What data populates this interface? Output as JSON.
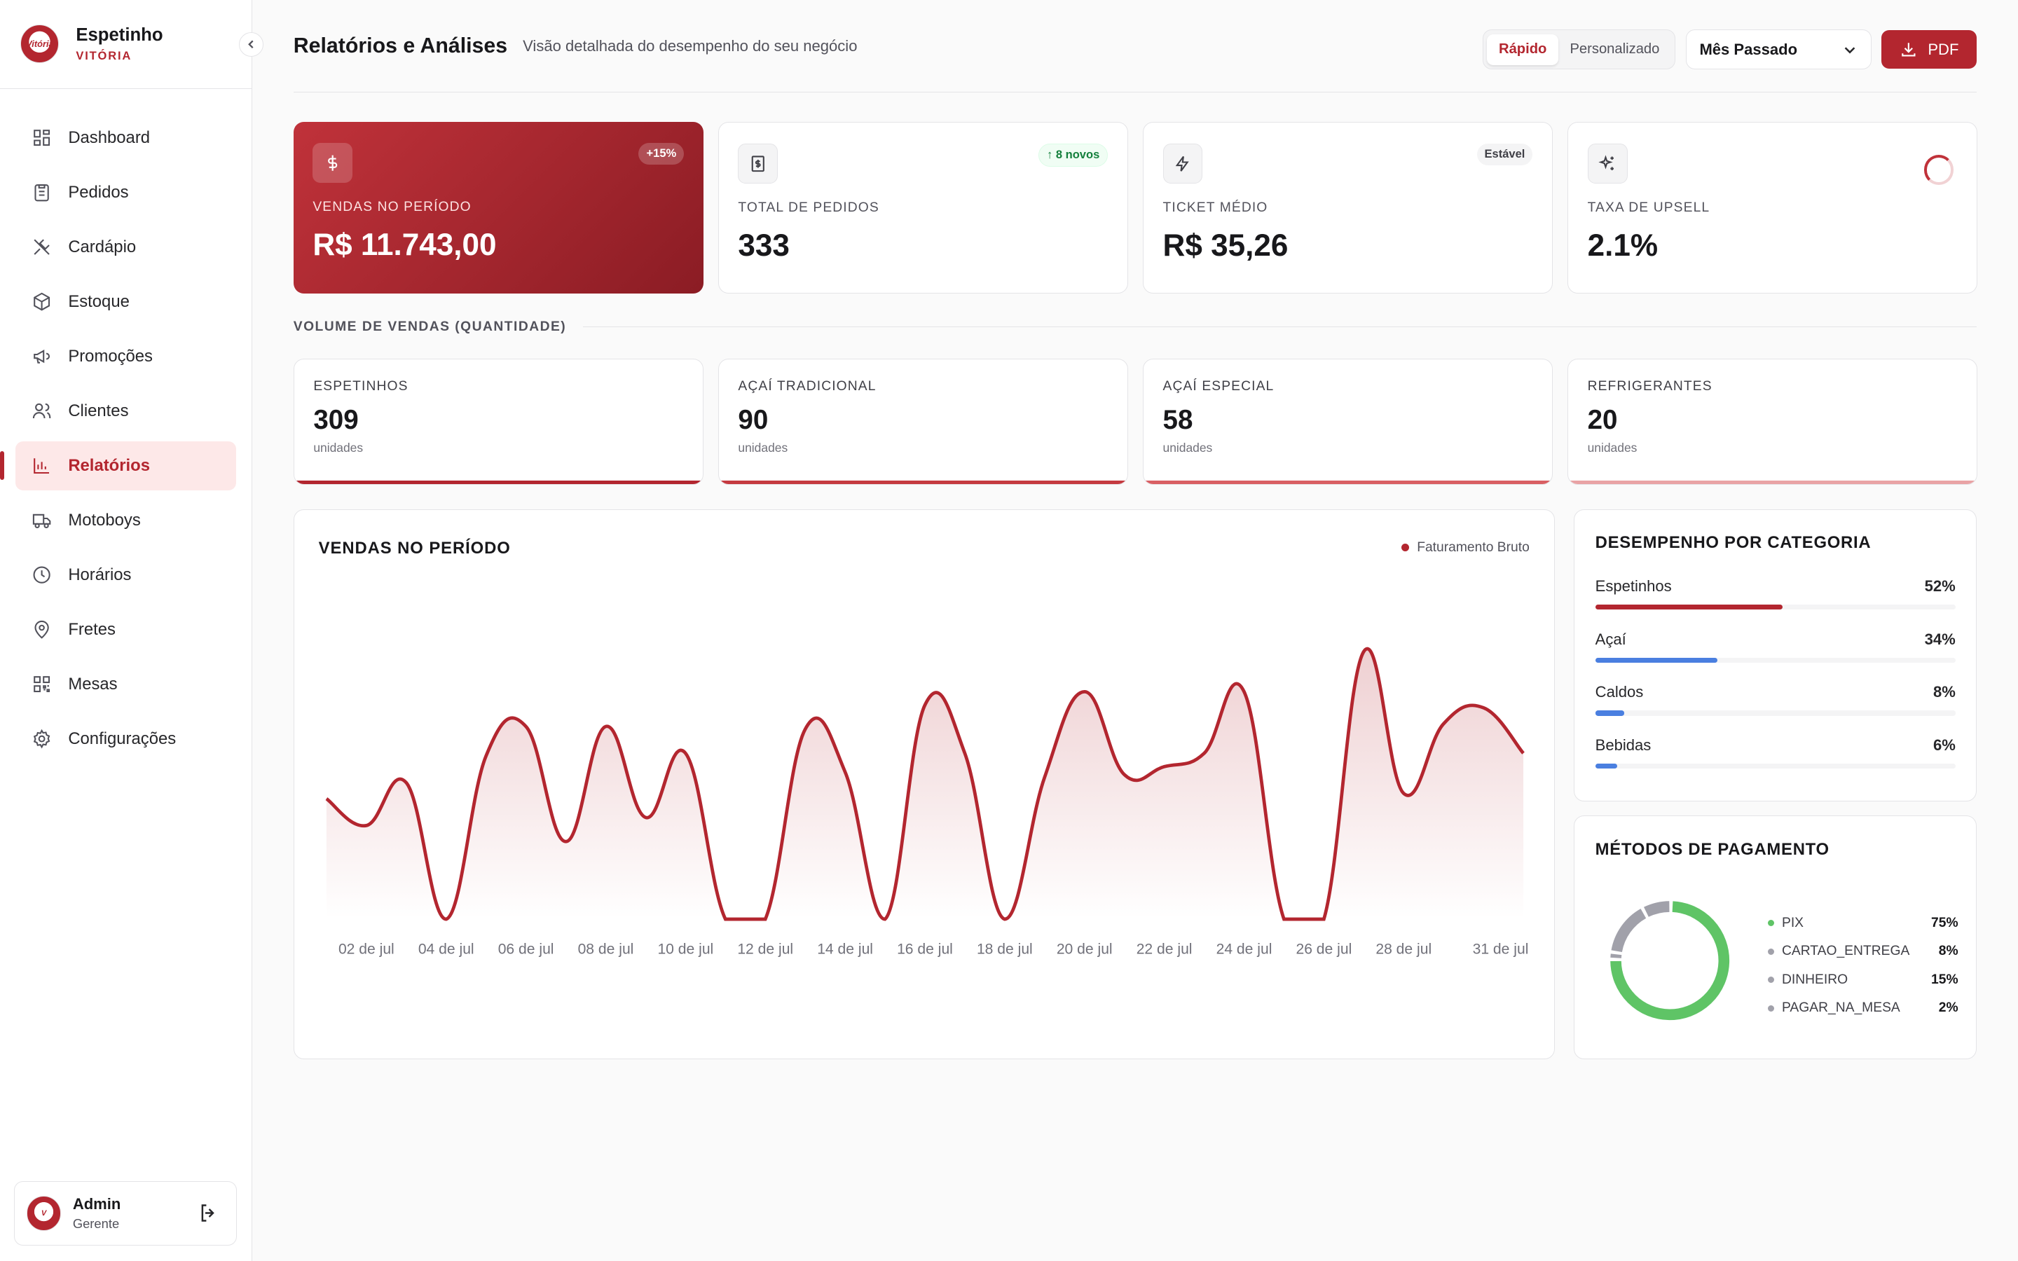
{
  "brand": {
    "name": "Espetinho",
    "sub": "VITÓRIA",
    "logo_text": "Vitória"
  },
  "nav": [
    {
      "label": "Dashboard",
      "icon": "dashboard-icon",
      "active": false
    },
    {
      "label": "Pedidos",
      "icon": "clipboard-icon",
      "active": false
    },
    {
      "label": "Cardápio",
      "icon": "utensils-icon",
      "active": false
    },
    {
      "label": "Estoque",
      "icon": "box-icon",
      "active": false
    },
    {
      "label": "Promoções",
      "icon": "megaphone-icon",
      "active": false
    },
    {
      "label": "Clientes",
      "icon": "users-icon",
      "active": false
    },
    {
      "label": "Relatórios",
      "icon": "bar-chart-icon",
      "active": true
    },
    {
      "label": "Motoboys",
      "icon": "truck-icon",
      "active": false
    },
    {
      "label": "Horários",
      "icon": "clock-icon",
      "active": false
    },
    {
      "label": "Fretes",
      "icon": "map-pin-icon",
      "active": false
    },
    {
      "label": "Mesas",
      "icon": "qr-code-icon",
      "active": false
    },
    {
      "label": "Configurações",
      "icon": "gear-icon",
      "active": false
    }
  ],
  "user": {
    "name": "Admin",
    "role": "Gerente"
  },
  "header": {
    "title": "Relatórios e Análises",
    "subtitle": "Visão detalhada do desempenho do seu negócio",
    "seg": [
      "Rápido",
      "Personalizado"
    ],
    "period": "Mês Passado",
    "pdf": "PDF"
  },
  "kpis": [
    {
      "label": "VENDAS NO PERÍODO",
      "value": "R$ 11.743,00",
      "badge": "+15%"
    },
    {
      "label": "TOTAL DE PEDIDOS",
      "value": "333",
      "badge": "8 novos"
    },
    {
      "label": "TICKET MÉDIO",
      "value": "R$ 35,26",
      "badge": "Estável"
    },
    {
      "label": "TAXA DE UPSELL",
      "value": "2.1%"
    }
  ],
  "volume": {
    "title": "VOLUME DE VENDAS (QUANTIDADE)",
    "items": [
      {
        "label": "ESPETINHOS",
        "value": "309",
        "unit": "unidades"
      },
      {
        "label": "AÇAÍ TRADICIONAL",
        "value": "90",
        "unit": "unidades"
      },
      {
        "label": "AÇAÍ ESPECIAL",
        "value": "58",
        "unit": "unidades"
      },
      {
        "label": "REFRIGERANTES",
        "value": "20",
        "unit": "unidades"
      }
    ]
  },
  "chart_data": {
    "type": "area",
    "title": "VENDAS NO PERÍODO",
    "series": [
      {
        "name": "Faturamento Bruto",
        "values": [
          0.45,
          0.35,
          0.51,
          0,
          0.61,
          0.72,
          0.29,
          0.72,
          0.38,
          0.62,
          0,
          0,
          0.71,
          0.55,
          0,
          0.8,
          0.62,
          0,
          0.53,
          0.85,
          0.54,
          0.57,
          0.62,
          0.85,
          0,
          0,
          1,
          0.47,
          0.73,
          0.79,
          0.62
        ]
      }
    ],
    "x": [
      "01 de jul",
      "02 de jul",
      "03 de jul",
      "04 de jul",
      "05 de jul",
      "06 de jul",
      "07 de jul",
      "08 de jul",
      "09 de jul",
      "10 de jul",
      "11 de jul",
      "12 de jul",
      "13 de jul",
      "14 de jul",
      "15 de jul",
      "16 de jul",
      "17 de jul",
      "18 de jul",
      "19 de jul",
      "20 de jul",
      "21 de jul",
      "22 de jul",
      "23 de jul",
      "24 de jul",
      "25 de jul",
      "26 de jul",
      "27 de jul",
      "28 de jul",
      "29 de jul",
      "30 de jul",
      "31 de jul"
    ],
    "xticks": [
      "02 de jul",
      "04 de jul",
      "06 de jul",
      "08 de jul",
      "10 de jul",
      "12 de jul",
      "14 de jul",
      "16 de jul",
      "18 de jul",
      "20 de jul",
      "22 de jul",
      "24 de jul",
      "26 de jul",
      "28 de jul",
      "31 de jul"
    ],
    "color": "#b3262f"
  },
  "categories": {
    "title": "DESEMPENHO POR CATEGORIA",
    "items": [
      {
        "label": "Espetinhos",
        "pct": "52%",
        "value": 52,
        "color": "#b3262f"
      },
      {
        "label": "Açaí",
        "pct": "34%",
        "value": 34,
        "color": "#4a7fe0"
      },
      {
        "label": "Caldos",
        "pct": "8%",
        "value": 8,
        "color": "#4a7fe0"
      },
      {
        "label": "Bebidas",
        "pct": "6%",
        "value": 6,
        "color": "#4a7fe0"
      }
    ]
  },
  "payments": {
    "title": "MÉTODOS DE PAGAMENTO",
    "items": [
      {
        "label": "PIX",
        "pct": "75%",
        "value": 75,
        "color": "#5fc466"
      },
      {
        "label": "CARTAO_ENTREGA",
        "pct": "8%",
        "value": 8,
        "color": "#a1a1aa"
      },
      {
        "label": "DINHEIRO",
        "pct": "15%",
        "value": 15,
        "color": "#a1a1aa"
      },
      {
        "label": "PAGAR_NA_MESA",
        "pct": "2%",
        "value": 2,
        "color": "#a1a1aa"
      }
    ]
  }
}
